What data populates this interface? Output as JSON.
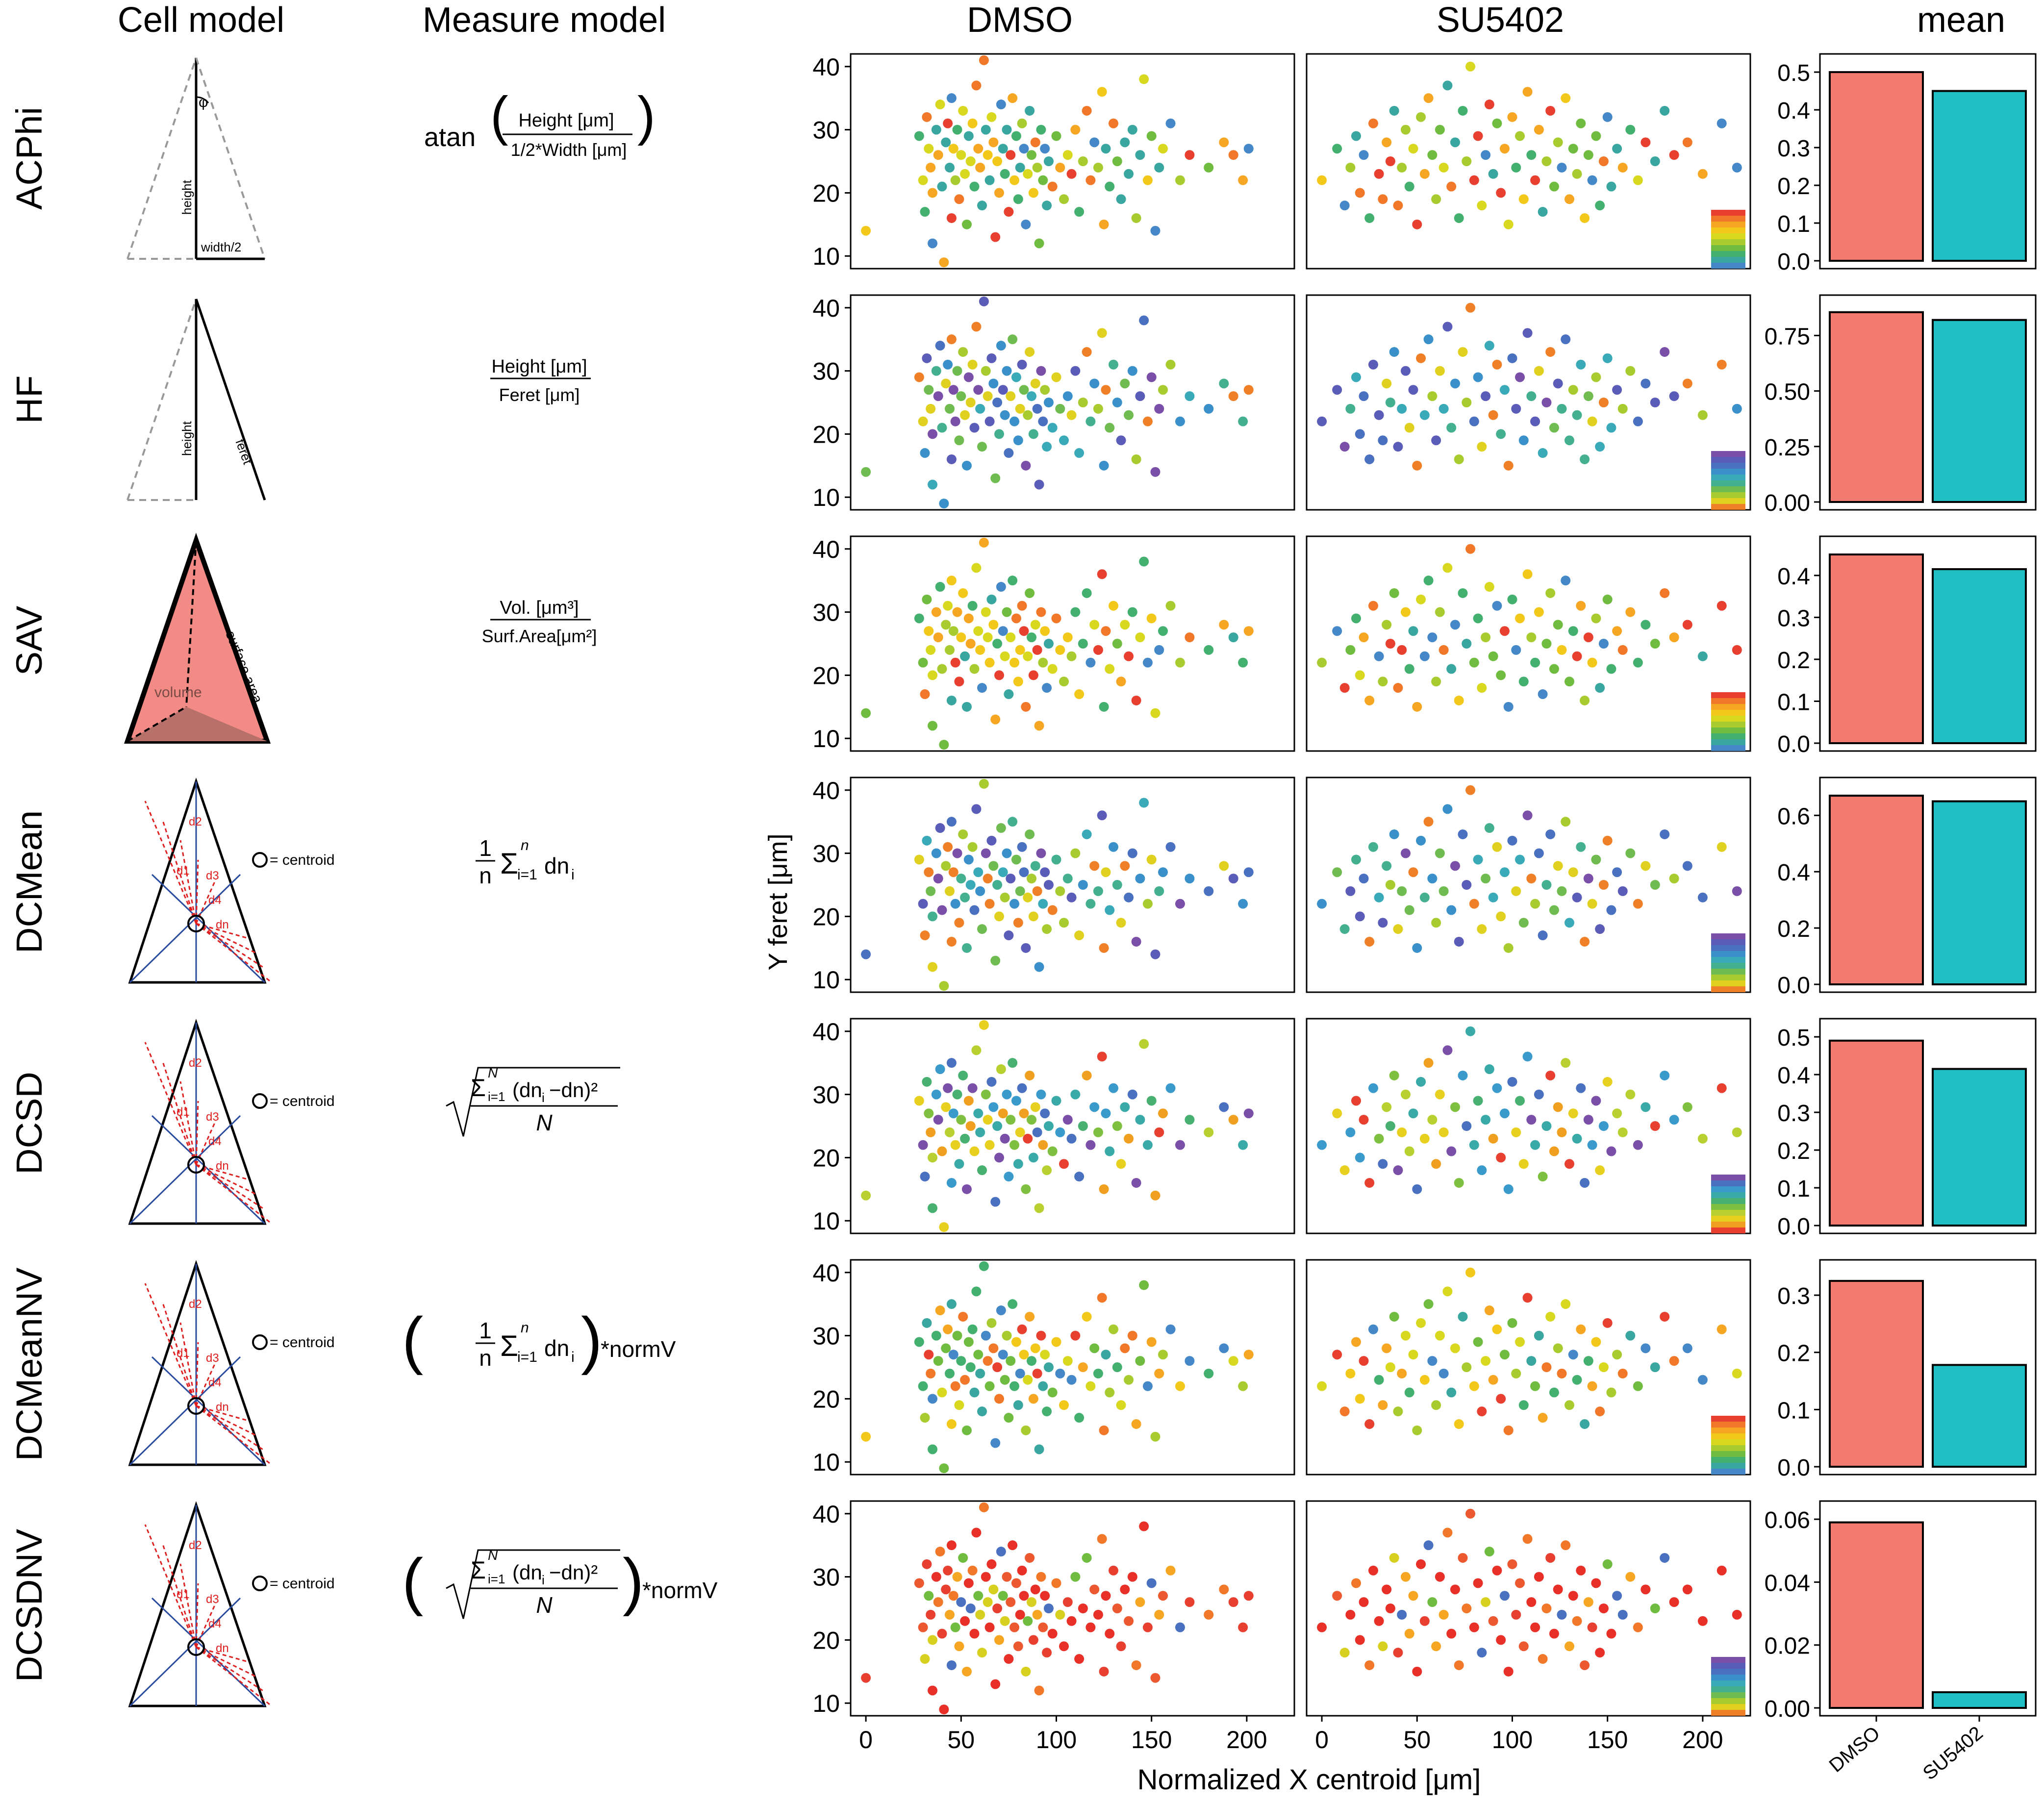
{
  "headers": {
    "cell_model": "Cell model",
    "measure_model": "Measure model",
    "dmso": "DMSO",
    "su5402": "SU5402",
    "mean": "mean"
  },
  "rows": [
    {
      "label": "ACPhi",
      "cell_model": "triangle-angle",
      "cell_labels": [
        "φ",
        "height",
        "width/2"
      ],
      "measure": {
        "kind": "atan",
        "prefix": "atan",
        "numerator": "Height [μm]",
        "denominator": "1/2*Width [μm]"
      },
      "mean": {
        "ylim": [
          0,
          0.5
        ],
        "ticks": [
          "0.0",
          "0.1",
          "0.2",
          "0.3",
          "0.4",
          "0.5"
        ],
        "values": [
          0.5,
          0.45
        ]
      },
      "palette": "warm"
    },
    {
      "label": "HF",
      "cell_model": "triangle-feret",
      "cell_labels": [
        "height",
        "feret"
      ],
      "measure": {
        "kind": "fraction",
        "numerator": "Height [μm]",
        "denominator": "Feret [μm]"
      },
      "mean": {
        "ylim": [
          0,
          0.85
        ],
        "ticks": [
          "0.00",
          "0.25",
          "0.50",
          "0.75"
        ],
        "tick_values": [
          0,
          0.25,
          0.5,
          0.75
        ],
        "values": [
          0.855,
          0.82
        ]
      },
      "palette": "cool"
    },
    {
      "label": "SAV",
      "cell_model": "pyramid",
      "cell_labels": [
        "volume",
        "surface area"
      ],
      "measure": {
        "kind": "fraction",
        "numerator": "Vol. [μm³]",
        "denominator": "Surf.Area[μm²]"
      },
      "mean": {
        "ylim": [
          0,
          0.45
        ],
        "ticks": [
          "0.0",
          "0.1",
          "0.2",
          "0.3",
          "0.4"
        ],
        "values": [
          0.45,
          0.415
        ]
      },
      "palette": "warm"
    },
    {
      "label": "DCMean",
      "cell_model": "centroid",
      "cell_labels": [
        "= centroid",
        "d1",
        "d2",
        "d3",
        "d4",
        "dn"
      ],
      "measure": {
        "kind": "sum",
        "text": "1/n Σ i=1..n dn_i"
      },
      "mean": {
        "ylim": [
          0,
          0.67
        ],
        "ticks": [
          "0.0",
          "0.2",
          "0.4",
          "0.6"
        ],
        "values": [
          0.67,
          0.65
        ]
      },
      "palette": "cool"
    },
    {
      "label": "DCSD",
      "cell_model": "centroid",
      "cell_labels": [
        "= centroid",
        "d1",
        "d2",
        "d3",
        "d4",
        "dn"
      ],
      "measure": {
        "kind": "sd",
        "text": "sqrt(Σ i=1..N (dn_i − mean dn)² / N)"
      },
      "mean": {
        "ylim": [
          0,
          0.5
        ],
        "ticks": [
          "0.0",
          "0.1",
          "0.2",
          "0.3",
          "0.4",
          "0.5"
        ],
        "values": [
          0.49,
          0.415
        ]
      },
      "palette": "mixed"
    },
    {
      "label": "DCMeanNV",
      "cell_model": "centroid",
      "cell_labels": [
        "= centroid",
        "d1",
        "d2",
        "d3",
        "d4",
        "dn"
      ],
      "measure": {
        "kind": "sum-norm",
        "text": "(1/n Σ i=1..n dn_i)*normV",
        "suffix": "*normV"
      },
      "mean": {
        "ylim": [
          0,
          0.33
        ],
        "ticks": [
          "0.0",
          "0.1",
          "0.2",
          "0.3"
        ],
        "values": [
          0.325,
          0.178
        ]
      },
      "palette": "warm"
    },
    {
      "label": "DCSDNV",
      "cell_model": "centroid",
      "cell_labels": [
        "= centroid",
        "d1",
        "d2",
        "d3",
        "d4",
        "dn"
      ],
      "measure": {
        "kind": "sd-norm",
        "text": "(sqrt(Σ i=1..N (dn_i − mean dn)² / N))*normV",
        "suffix": "*normV"
      },
      "mean": {
        "ylim": [
          0,
          0.06
        ],
        "ticks": [
          "0.00",
          "0.02",
          "0.04",
          "0.06"
        ],
        "values": [
          0.059,
          0.005
        ]
      },
      "palette": "red"
    }
  ],
  "chart_data": {
    "type": "scatter",
    "panels": [
      "DMSO",
      "SU5402"
    ],
    "xlabel": "Normalized X centroid [μm]",
    "ylabel": "Y feret [μm]",
    "xlim": [
      -8,
      225
    ],
    "ylim": [
      8,
      42
    ],
    "xticks": [
      0,
      50,
      100,
      150,
      200
    ],
    "yticks": [
      10,
      20,
      30,
      40
    ],
    "mean_bars": {
      "type": "bar",
      "categories": [
        "DMSO",
        "SU5402"
      ],
      "colors": [
        "#F27A6F",
        "#1FBFC3"
      ]
    },
    "dmso_points": [
      [
        0,
        14
      ],
      [
        28,
        29
      ],
      [
        30,
        22
      ],
      [
        31,
        17
      ],
      [
        32,
        32
      ],
      [
        33,
        27
      ],
      [
        34,
        24
      ],
      [
        35,
        20
      ],
      [
        35,
        12
      ],
      [
        37,
        30
      ],
      [
        38,
        26
      ],
      [
        39,
        34
      ],
      [
        40,
        21
      ],
      [
        41,
        9
      ],
      [
        42,
        28
      ],
      [
        43,
        31
      ],
      [
        44,
        24
      ],
      [
        45,
        16
      ],
      [
        45,
        35
      ],
      [
        46,
        27
      ],
      [
        47,
        22
      ],
      [
        48,
        30
      ],
      [
        49,
        19
      ],
      [
        50,
        26
      ],
      [
        51,
        33
      ],
      [
        52,
        23
      ],
      [
        53,
        15
      ],
      [
        54,
        29
      ],
      [
        55,
        25
      ],
      [
        56,
        31
      ],
      [
        57,
        21
      ],
      [
        58,
        37
      ],
      [
        59,
        27
      ],
      [
        60,
        24
      ],
      [
        61,
        18
      ],
      [
        62,
        41
      ],
      [
        63,
        30
      ],
      [
        64,
        26
      ],
      [
        65,
        22
      ],
      [
        66,
        32
      ],
      [
        67,
        28
      ],
      [
        68,
        13
      ],
      [
        69,
        25
      ],
      [
        70,
        20
      ],
      [
        71,
        34
      ],
      [
        72,
        27
      ],
      [
        73,
        23
      ],
      [
        74,
        30
      ],
      [
        75,
        17
      ],
      [
        76,
        26
      ],
      [
        77,
        35
      ],
      [
        78,
        22
      ],
      [
        79,
        29
      ],
      [
        80,
        19
      ],
      [
        81,
        24
      ],
      [
        82,
        31
      ],
      [
        83,
        27
      ],
      [
        84,
        15
      ],
      [
        85,
        23
      ],
      [
        86,
        33
      ],
      [
        87,
        26
      ],
      [
        88,
        20
      ],
      [
        89,
        28
      ],
      [
        90,
        24
      ],
      [
        91,
        12
      ],
      [
        92,
        30
      ],
      [
        93,
        22
      ],
      [
        94,
        27
      ],
      [
        95,
        18
      ],
      [
        96,
        25
      ],
      [
        98,
        21
      ],
      [
        100,
        29
      ],
      [
        102,
        24
      ],
      [
        104,
        19
      ],
      [
        106,
        26
      ],
      [
        108,
        23
      ],
      [
        110,
        30
      ],
      [
        112,
        17
      ],
      [
        114,
        25
      ],
      [
        116,
        33
      ],
      [
        118,
        22
      ],
      [
        120,
        28
      ],
      [
        122,
        24
      ],
      [
        124,
        36
      ],
      [
        125,
        15
      ],
      [
        126,
        27
      ],
      [
        128,
        21
      ],
      [
        130,
        31
      ],
      [
        132,
        25
      ],
      [
        134,
        19
      ],
      [
        136,
        28
      ],
      [
        138,
        23
      ],
      [
        140,
        30
      ],
      [
        142,
        16
      ],
      [
        144,
        26
      ],
      [
        146,
        38
      ],
      [
        148,
        22
      ],
      [
        150,
        29
      ],
      [
        152,
        14
      ],
      [
        154,
        24
      ],
      [
        156,
        27
      ],
      [
        160,
        31
      ],
      [
        165,
        22
      ],
      [
        170,
        26
      ],
      [
        180,
        24
      ],
      [
        188,
        28
      ],
      [
        193,
        26
      ],
      [
        198,
        22
      ],
      [
        201,
        27
      ]
    ],
    "su5402_points": [
      [
        0,
        22
      ],
      [
        8,
        27
      ],
      [
        12,
        18
      ],
      [
        15,
        24
      ],
      [
        18,
        29
      ],
      [
        20,
        20
      ],
      [
        22,
        26
      ],
      [
        25,
        16
      ],
      [
        27,
        31
      ],
      [
        30,
        23
      ],
      [
        32,
        19
      ],
      [
        34,
        28
      ],
      [
        36,
        25
      ],
      [
        38,
        33
      ],
      [
        40,
        18
      ],
      [
        42,
        24
      ],
      [
        44,
        30
      ],
      [
        46,
        21
      ],
      [
        48,
        27
      ],
      [
        50,
        15
      ],
      [
        52,
        32
      ],
      [
        54,
        23
      ],
      [
        56,
        35
      ],
      [
        58,
        26
      ],
      [
        60,
        19
      ],
      [
        62,
        30
      ],
      [
        64,
        24
      ],
      [
        66,
        37
      ],
      [
        68,
        21
      ],
      [
        70,
        28
      ],
      [
        72,
        16
      ],
      [
        74,
        33
      ],
      [
        76,
        25
      ],
      [
        78,
        40
      ],
      [
        80,
        22
      ],
      [
        82,
        29
      ],
      [
        84,
        18
      ],
      [
        86,
        26
      ],
      [
        88,
        34
      ],
      [
        90,
        23
      ],
      [
        92,
        31
      ],
      [
        94,
        20
      ],
      [
        96,
        27
      ],
      [
        98,
        15
      ],
      [
        100,
        32
      ],
      [
        102,
        24
      ],
      [
        104,
        29
      ],
      [
        106,
        19
      ],
      [
        108,
        36
      ],
      [
        110,
        26
      ],
      [
        112,
        22
      ],
      [
        114,
        30
      ],
      [
        116,
        17
      ],
      [
        118,
        25
      ],
      [
        120,
        33
      ],
      [
        122,
        21
      ],
      [
        124,
        28
      ],
      [
        126,
        24
      ],
      [
        128,
        35
      ],
      [
        130,
        19
      ],
      [
        132,
        27
      ],
      [
        134,
        23
      ],
      [
        136,
        31
      ],
      [
        138,
        16
      ],
      [
        140,
        26
      ],
      [
        142,
        22
      ],
      [
        144,
        29
      ],
      [
        146,
        18
      ],
      [
        148,
        25
      ],
      [
        150,
        32
      ],
      [
        152,
        21
      ],
      [
        155,
        27
      ],
      [
        158,
        24
      ],
      [
        162,
        30
      ],
      [
        166,
        22
      ],
      [
        170,
        28
      ],
      [
        175,
        25
      ],
      [
        180,
        33
      ],
      [
        185,
        26
      ],
      [
        192,
        28
      ],
      [
        200,
        23
      ],
      [
        210,
        31
      ],
      [
        218,
        24
      ]
    ]
  }
}
